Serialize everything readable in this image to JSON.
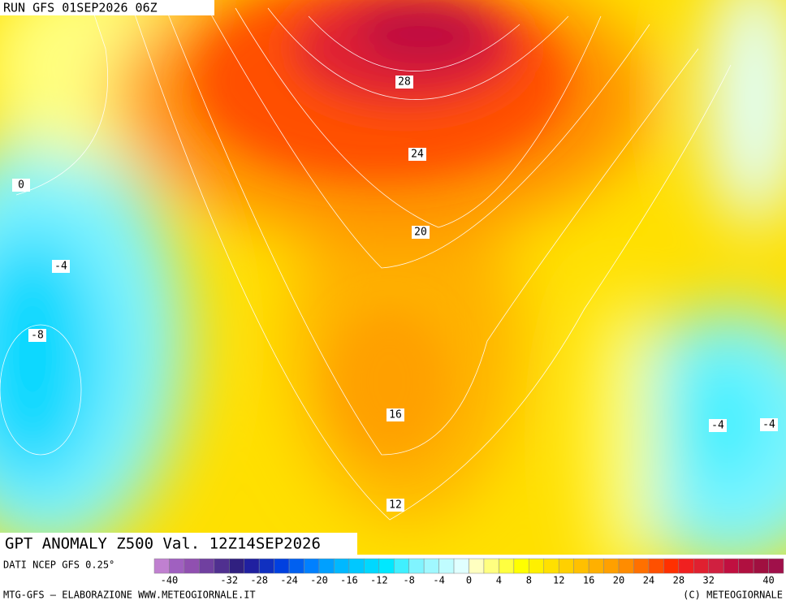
{
  "header": {
    "run": "RUN GFS 01SEP2026 06Z"
  },
  "map": {
    "contour_labels": [
      28,
      24,
      20,
      16,
      12,
      0,
      -4,
      -8,
      -4,
      -4
    ]
  },
  "footer": {
    "title": "GPT ANOMALY Z500 Val. 12Z14SEP2026",
    "source": "DATI NCEP GFS 0.25°",
    "credit_left": "MTG-GFS — ELABORAZIONE WWW.METEOGIORNALE.IT",
    "credit_right": "(C) METEOGIORNALE"
  },
  "colorbar": {
    "range": [
      -42,
      42
    ],
    "colors": [
      "#c080d0",
      "#a060c0",
      "#9050b0",
      "#7040a0",
      "#503090",
      "#302080",
      "#2020a0",
      "#1030c0",
      "#0040e0",
      "#0060f0",
      "#0080ff",
      "#00a0ff",
      "#00b8ff",
      "#00c8ff",
      "#00d8ff",
      "#00e8ff",
      "#40f0ff",
      "#80f4ff",
      "#a0f8ff",
      "#c0fcff",
      "#e0ffff",
      "#ffffc0",
      "#ffff80",
      "#ffff40",
      "#ffff00",
      "#fff000",
      "#ffe000",
      "#ffd000",
      "#ffc000",
      "#ffb000",
      "#ffa000",
      "#ff8c00",
      "#ff7000",
      "#ff5000",
      "#ff3000",
      "#f02020",
      "#e02030",
      "#d02040",
      "#c01040",
      "#b01040",
      "#a01040",
      "#a0104a"
    ],
    "ticks": [
      -40,
      -32,
      -28,
      -24,
      -20,
      -16,
      -12,
      -8,
      -4,
      0,
      4,
      8,
      12,
      16,
      20,
      24,
      28,
      32,
      40
    ]
  }
}
